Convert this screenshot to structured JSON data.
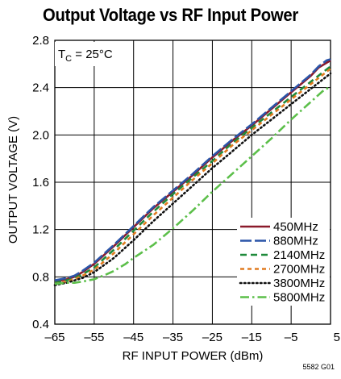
{
  "chart_data": {
    "type": "line",
    "title": "Output Voltage vs RF Input Power",
    "xlabel": "RF INPUT POWER (dBm)",
    "ylabel": "OUTPUT VOLTAGE (V)",
    "xlim": [
      -65,
      5
    ],
    "ylim": [
      0.4,
      2.8
    ],
    "x_ticks": [
      -65,
      -55,
      -45,
      -35,
      -25,
      -15,
      -5,
      5
    ],
    "x_tick_labels": [
      "–65",
      "–55",
      "–45",
      "–35",
      "–25",
      "–15",
      "–5",
      "5"
    ],
    "y_ticks": [
      0.4,
      0.8,
      1.2,
      1.6,
      2.0,
      2.4,
      2.8
    ],
    "y_tick_labels": [
      "0.4",
      "0.8",
      "1.2",
      "1.6",
      "2.0",
      "2.4",
      "2.8"
    ],
    "grid": true,
    "annotation": {
      "main": "T",
      "sub": "C",
      "rest": " = 25°C"
    },
    "legend_position": "bottom-right",
    "figure_id": "5582 G01",
    "series": [
      {
        "name": "450MHz",
        "color": "#8b1a2b",
        "dash": "solid",
        "x": [
          -65,
          -62,
          -60,
          -58,
          -55,
          -50,
          -45,
          -40,
          -35,
          -30,
          -25,
          -20,
          -15,
          -10,
          -5,
          0,
          2,
          4,
          5
        ],
        "y": [
          0.76,
          0.78,
          0.8,
          0.84,
          0.91,
          1.06,
          1.22,
          1.38,
          1.52,
          1.66,
          1.81,
          1.95,
          2.08,
          2.22,
          2.36,
          2.5,
          2.57,
          2.61,
          2.63
        ]
      },
      {
        "name": "880MHz",
        "color": "#2b55a8",
        "dash": "long-dash",
        "x": [
          -65,
          -62,
          -60,
          -58,
          -55,
          -50,
          -45,
          -40,
          -35,
          -30,
          -25,
          -20,
          -15,
          -10,
          -5,
          0,
          2,
          4,
          5
        ],
        "y": [
          0.77,
          0.79,
          0.81,
          0.85,
          0.92,
          1.07,
          1.23,
          1.39,
          1.53,
          1.67,
          1.82,
          1.96,
          2.09,
          2.23,
          2.37,
          2.51,
          2.58,
          2.63,
          2.64
        ]
      },
      {
        "name": "2140MHz",
        "color": "#1f8a3b",
        "dash": "dash",
        "x": [
          -65,
          -62,
          -60,
          -58,
          -55,
          -50,
          -45,
          -40,
          -35,
          -30,
          -25,
          -20,
          -15,
          -10,
          -5,
          0,
          5
        ],
        "y": [
          0.75,
          0.77,
          0.79,
          0.82,
          0.88,
          1.03,
          1.19,
          1.35,
          1.5,
          1.64,
          1.78,
          1.93,
          2.06,
          2.19,
          2.32,
          2.45,
          2.58
        ]
      },
      {
        "name": "2700MHz",
        "color": "#e07b20",
        "dash": "short-dash",
        "x": [
          -65,
          -62,
          -60,
          -58,
          -55,
          -50,
          -45,
          -40,
          -35,
          -30,
          -25,
          -20,
          -15,
          -10,
          -5,
          0,
          5
        ],
        "y": [
          0.74,
          0.76,
          0.78,
          0.81,
          0.86,
          1.0,
          1.16,
          1.32,
          1.47,
          1.62,
          1.76,
          1.91,
          2.04,
          2.17,
          2.3,
          2.43,
          2.56
        ]
      },
      {
        "name": "3800MHz",
        "color": "#111111",
        "dash": "dot",
        "x": [
          -65,
          -62,
          -60,
          -58,
          -55,
          -50,
          -45,
          -40,
          -35,
          -30,
          -25,
          -20,
          -15,
          -10,
          -5,
          0,
          5
        ],
        "y": [
          0.73,
          0.75,
          0.77,
          0.79,
          0.84,
          0.96,
          1.11,
          1.27,
          1.42,
          1.57,
          1.72,
          1.86,
          2.0,
          2.13,
          2.26,
          2.39,
          2.52
        ]
      },
      {
        "name": "5800MHz",
        "color": "#5cbf4a",
        "dash": "dash-dot",
        "x": [
          -65,
          -62,
          -60,
          -58,
          -55,
          -52,
          -50,
          -47,
          -45,
          -40,
          -35,
          -30,
          -25,
          -20,
          -15,
          -10,
          -5,
          0,
          3,
          5
        ],
        "y": [
          0.74,
          0.75,
          0.75,
          0.76,
          0.78,
          0.82,
          0.85,
          0.91,
          0.96,
          1.07,
          1.21,
          1.36,
          1.52,
          1.67,
          1.82,
          1.97,
          2.13,
          2.28,
          2.37,
          2.41
        ]
      }
    ]
  }
}
